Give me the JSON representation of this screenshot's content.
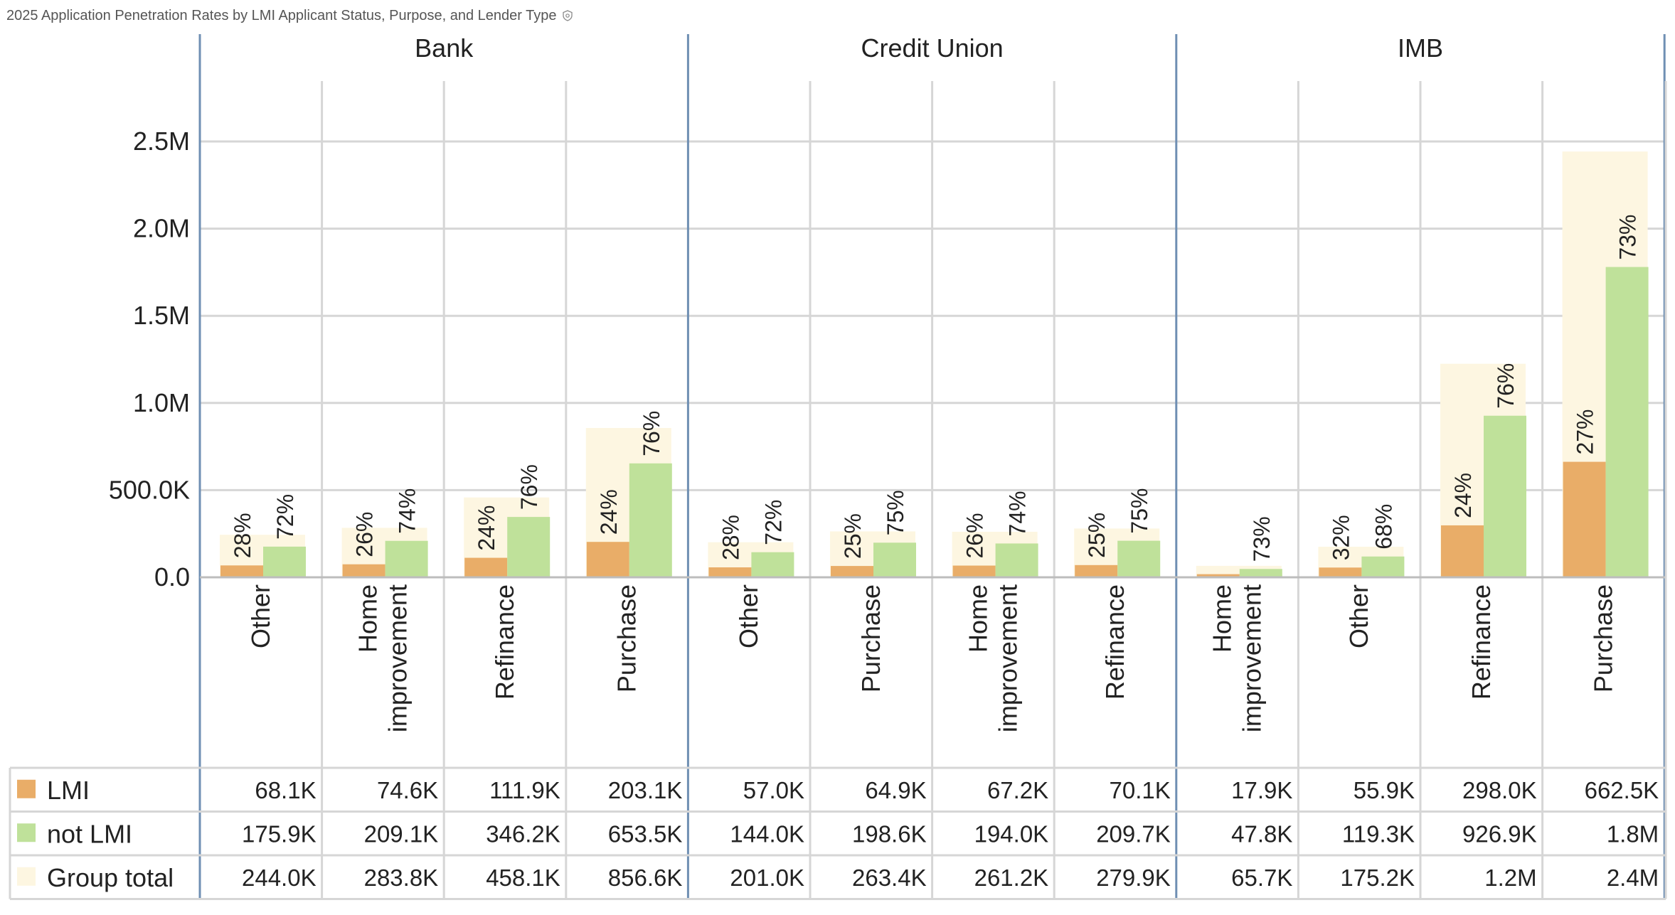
{
  "title": "2025 Application Penetration Rates by LMI Applicant Status, Purpose, and Lender Type",
  "icons": {
    "info": "info-shield-icon"
  },
  "colors": {
    "lmi": "#e9ad68",
    "not_lmi": "#bfe19a",
    "group_total": "#fdf6e1",
    "grid": "#d6d6d6",
    "group_divider": "#6f8fb3"
  },
  "chart_data": {
    "type": "bar",
    "ylim": [
      0,
      2800000
    ],
    "yticks": [
      {
        "value": 0,
        "label": "0.0"
      },
      {
        "value": 500000,
        "label": "500.0K"
      },
      {
        "value": 1000000,
        "label": "1.0M"
      },
      {
        "value": 1500000,
        "label": "1.5M"
      },
      {
        "value": 2000000,
        "label": "2.0M"
      },
      {
        "value": 2500000,
        "label": "2.5M"
      }
    ],
    "grid": true,
    "legend_position": "bottom-left table",
    "series": [
      {
        "key": "lmi",
        "name": "LMI"
      },
      {
        "key": "not_lmi",
        "name": "not LMI"
      },
      {
        "key": "total",
        "name": "Group total"
      }
    ],
    "groups": [
      {
        "name": "Bank",
        "categories": [
          {
            "name": "Other",
            "lmi": 68100,
            "not_lmi": 175900,
            "total": 244000,
            "lmi_label": "68.1K",
            "not_lmi_label": "175.9K",
            "total_label": "244.0K",
            "lmi_pct": "28%",
            "not_lmi_pct": "72%"
          },
          {
            "name": "Home improvement",
            "lmi": 74600,
            "not_lmi": 209100,
            "total": 283800,
            "lmi_label": "74.6K",
            "not_lmi_label": "209.1K",
            "total_label": "283.8K",
            "lmi_pct": "26%",
            "not_lmi_pct": "74%"
          },
          {
            "name": "Refinance",
            "lmi": 111900,
            "not_lmi": 346200,
            "total": 458100,
            "lmi_label": "111.9K",
            "not_lmi_label": "346.2K",
            "total_label": "458.1K",
            "lmi_pct": "24%",
            "not_lmi_pct": "76%"
          },
          {
            "name": "Purchase",
            "lmi": 203100,
            "not_lmi": 653500,
            "total": 856600,
            "lmi_label": "203.1K",
            "not_lmi_label": "653.5K",
            "total_label": "856.6K",
            "lmi_pct": "24%",
            "not_lmi_pct": "76%"
          }
        ]
      },
      {
        "name": "Credit Union",
        "categories": [
          {
            "name": "Other",
            "lmi": 57000,
            "not_lmi": 144000,
            "total": 201000,
            "lmi_label": "57.0K",
            "not_lmi_label": "144.0K",
            "total_label": "201.0K",
            "lmi_pct": "28%",
            "not_lmi_pct": "72%"
          },
          {
            "name": "Purchase",
            "lmi": 64900,
            "not_lmi": 198600,
            "total": 263400,
            "lmi_label": "64.9K",
            "not_lmi_label": "198.6K",
            "total_label": "263.4K",
            "lmi_pct": "25%",
            "not_lmi_pct": "75%"
          },
          {
            "name": "Home improvement",
            "lmi": 67200,
            "not_lmi": 194000,
            "total": 261200,
            "lmi_label": "67.2K",
            "not_lmi_label": "194.0K",
            "total_label": "261.2K",
            "lmi_pct": "26%",
            "not_lmi_pct": "74%"
          },
          {
            "name": "Refinance",
            "lmi": 70100,
            "not_lmi": 209700,
            "total": 279900,
            "lmi_label": "70.1K",
            "not_lmi_label": "209.7K",
            "total_label": "279.9K",
            "lmi_pct": "25%",
            "not_lmi_pct": "75%"
          }
        ]
      },
      {
        "name": "IMB",
        "categories": [
          {
            "name": "Home improvement",
            "lmi": 17900,
            "not_lmi": 47800,
            "total": 65700,
            "lmi_label": "17.9K",
            "not_lmi_label": "47.8K",
            "total_label": "65.7K",
            "lmi_pct": "",
            "not_lmi_pct": "73%"
          },
          {
            "name": "Other",
            "lmi": 55900,
            "not_lmi": 119300,
            "total": 175200,
            "lmi_label": "55.9K",
            "not_lmi_label": "119.3K",
            "total_label": "175.2K",
            "lmi_pct": "32%",
            "not_lmi_pct": "68%"
          },
          {
            "name": "Refinance",
            "lmi": 298000,
            "not_lmi": 926900,
            "total": 1224900,
            "lmi_label": "298.0K",
            "not_lmi_label": "926.9K",
            "total_label": "1.2M",
            "lmi_pct": "24%",
            "not_lmi_pct": "76%"
          },
          {
            "name": "Purchase",
            "lmi": 662500,
            "not_lmi": 1780000,
            "total": 2442500,
            "lmi_label": "662.5K",
            "not_lmi_label": "1.8M",
            "total_label": "2.4M",
            "lmi_pct": "27%",
            "not_lmi_pct": "73%"
          }
        ]
      }
    ]
  }
}
